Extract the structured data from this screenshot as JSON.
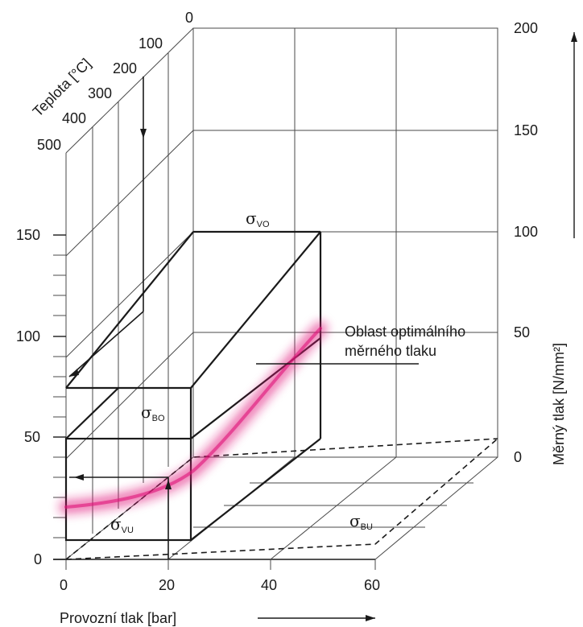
{
  "back_axis": {
    "ticks": [
      "200",
      "150",
      "100",
      "50",
      "0"
    ],
    "label": "Měrný tlak [N/mm²]"
  },
  "left_axis": {
    "ticks": [
      "150",
      "100",
      "50",
      "0"
    ]
  },
  "temperature_axis": {
    "label": "Teplota [°C]",
    "ticks": [
      "0",
      "100",
      "200",
      "300",
      "400",
      "500"
    ]
  },
  "bottom_axis": {
    "label": "Provozní tlak [bar]",
    "ticks": [
      "0",
      "20",
      "40",
      "60"
    ]
  },
  "labels": {
    "sigma_vo": {
      "base": "σ",
      "sub": "VO"
    },
    "sigma_bo": {
      "base": "σ",
      "sub": "BO"
    },
    "sigma_vu": {
      "base": "σ",
      "sub": "VU"
    },
    "sigma_bu": {
      "base": "σ",
      "sub": "BU"
    },
    "optimal_line1": "Oblast optimálního",
    "optimal_line2": "měrného tlaku"
  },
  "colors": {
    "optimal_band": "#e0147a",
    "lines": "#1a1a1a"
  }
}
